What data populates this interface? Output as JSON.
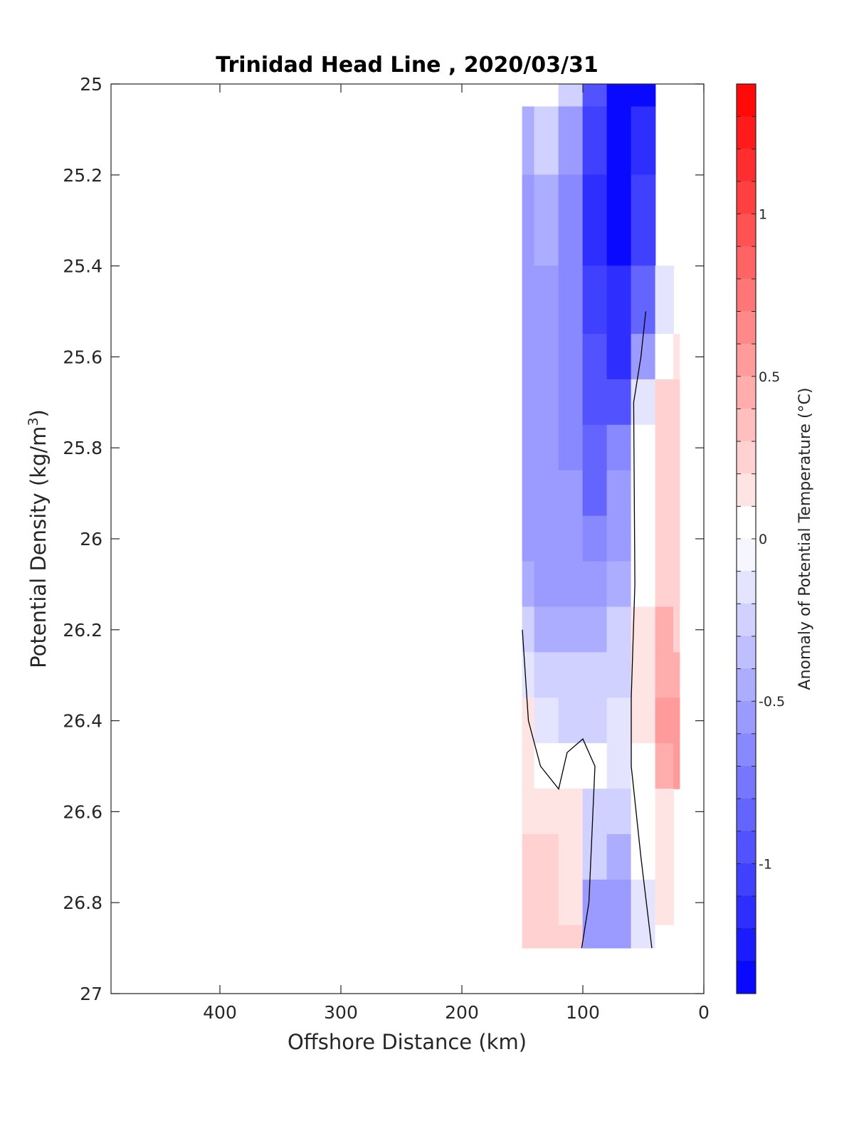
{
  "chart_data": {
    "type": "heatmap",
    "title": "Trinidad Head Line , 2020/03/31",
    "xlabel": "Offshore Distance (km)",
    "ylabel": "Potential Density (kg/m",
    "ylabel_sup": "3",
    "ylabel_end": ")",
    "xlim": [
      490,
      0
    ],
    "ylim": [
      25,
      27
    ],
    "x_ticks": [
      400,
      300,
      200,
      100,
      0
    ],
    "x_tick_labels": [
      "400",
      "300",
      "200",
      "100",
      "0"
    ],
    "y_ticks": [
      25,
      25.2,
      25.4,
      25.6,
      25.8,
      26,
      26.2,
      26.4,
      26.6,
      26.8,
      27
    ],
    "y_tick_labels": [
      "25",
      "25.2",
      "25.4",
      "25.6",
      "25.8",
      "26",
      "26.2",
      "26.4",
      "26.6",
      "26.8",
      "27"
    ],
    "colorbar": {
      "label": "Anomaly of Potential Temperature (°C)",
      "range": [
        -1.4,
        1.4
      ],
      "step": 0.1,
      "ticks": [
        1,
        0.5,
        0,
        -0.5,
        -1
      ],
      "tick_labels": [
        "1",
        "0.5",
        "0",
        "-0.5",
        "-1"
      ],
      "color_min": "#0000ff",
      "color_mid": "#ffffff",
      "color_max": "#ff0000"
    },
    "field": {
      "x_km": [
        150,
        130,
        110,
        90,
        70,
        50,
        30,
        20
      ],
      "sigma": [
        25,
        25.1,
        25.3,
        25.5,
        25.6,
        25.7,
        25.8,
        25.9,
        26.0,
        26.1,
        26.2,
        26.3,
        26.4,
        26.5,
        26.6,
        26.7,
        26.8,
        26.9
      ],
      "anomaly": [
        [
          null,
          null,
          -0.3,
          -0.9,
          -1.3,
          -1.3,
          null,
          null
        ],
        [
          -0.4,
          -0.3,
          -0.6,
          -1.0,
          -1.3,
          -1.2,
          null,
          null
        ],
        [
          -0.5,
          -0.4,
          -0.7,
          -1.1,
          -1.3,
          -1.0,
          null,
          null
        ],
        [
          -0.5,
          -0.5,
          -0.7,
          -1.0,
          -1.2,
          -0.8,
          -0.1,
          null
        ],
        [
          -0.5,
          -0.5,
          -0.7,
          -0.9,
          -1.1,
          -0.5,
          0.0,
          0.1
        ],
        [
          -0.5,
          -0.5,
          -0.7,
          -0.9,
          -0.9,
          -0.1,
          0.2,
          0.2
        ],
        [
          -0.5,
          -0.5,
          -0.7,
          -0.8,
          -0.7,
          0.0,
          0.3,
          0.2
        ],
        [
          -0.5,
          -0.6,
          -0.6,
          -0.8,
          -0.6,
          0.0,
          0.3,
          0.3
        ],
        [
          -0.5,
          -0.6,
          -0.6,
          -0.7,
          -0.5,
          0.0,
          0.3,
          0.3
        ],
        [
          -0.4,
          -0.5,
          -0.5,
          -0.6,
          -0.4,
          0.0,
          0.3,
          0.3
        ],
        [
          -0.3,
          -0.4,
          -0.4,
          -0.4,
          -0.3,
          0.1,
          0.4,
          0.3
        ],
        [
          -0.1,
          -0.3,
          -0.3,
          -0.3,
          -0.2,
          0.1,
          0.4,
          0.4
        ],
        [
          0.1,
          -0.1,
          -0.2,
          -0.2,
          -0.1,
          0.1,
          0.5,
          0.5
        ],
        [
          0.1,
          0.0,
          0.0,
          0.0,
          -0.1,
          0.0,
          0.4,
          0.5
        ],
        [
          0.1,
          0.1,
          0.1,
          -0.2,
          -0.3,
          0.0,
          0.1,
          null
        ],
        [
          0.2,
          0.2,
          0.1,
          -0.3,
          -0.4,
          0.0,
          0.1,
          null
        ],
        [
          0.3,
          0.3,
          0.1,
          -0.5,
          -0.5,
          -0.1,
          0.1,
          null
        ],
        [
          0.3,
          0.3,
          0.2,
          -0.5,
          -0.5,
          -0.1,
          0.0,
          null
        ]
      ]
    },
    "zero_contours": [
      [
        [
          48,
          25.5
        ],
        [
          52,
          25.6
        ],
        [
          58,
          25.7
        ],
        [
          57,
          26.1
        ],
        [
          60,
          26.35
        ],
        [
          60,
          26.5
        ],
        [
          52,
          26.7
        ],
        [
          43,
          26.9
        ]
      ],
      [
        [
          150,
          26.2
        ],
        [
          145,
          26.4
        ],
        [
          135,
          26.5
        ],
        [
          120,
          26.55
        ],
        [
          113,
          26.47
        ],
        [
          100,
          26.44
        ],
        [
          90,
          26.5
        ],
        [
          95,
          26.8
        ],
        [
          101,
          26.9
        ]
      ]
    ]
  }
}
